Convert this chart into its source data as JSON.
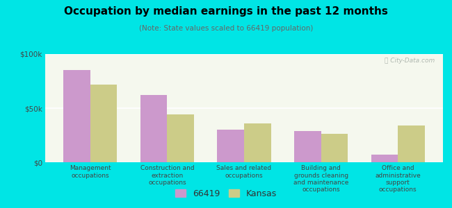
{
  "title": "Occupation by median earnings in the past 12 months",
  "subtitle": "(Note: State values scaled to 66419 population)",
  "categories": [
    "Management\noccupations",
    "Construction and\nextraction\noccupations",
    "Sales and related\noccupations",
    "Building and\ngrounds cleaning\nand maintenance\noccupations",
    "Office and\nadministrative\nsupport\noccupations"
  ],
  "values_66419": [
    85000,
    62000,
    30000,
    29000,
    7000
  ],
  "values_kansas": [
    72000,
    44000,
    36000,
    26000,
    34000
  ],
  "color_66419": "#cc99cc",
  "color_kansas": "#cccc88",
  "background_outer": "#00e5e5",
  "background_plot_top": "#e8f0d8",
  "background_plot_bottom": "#ffffff",
  "ylim": [
    0,
    100000
  ],
  "yticks": [
    0,
    50000,
    100000
  ],
  "ytick_labels": [
    "$0",
    "$50k",
    "$100k"
  ],
  "legend_label_66419": "66419",
  "legend_label_kansas": "Kansas",
  "bar_width": 0.35
}
